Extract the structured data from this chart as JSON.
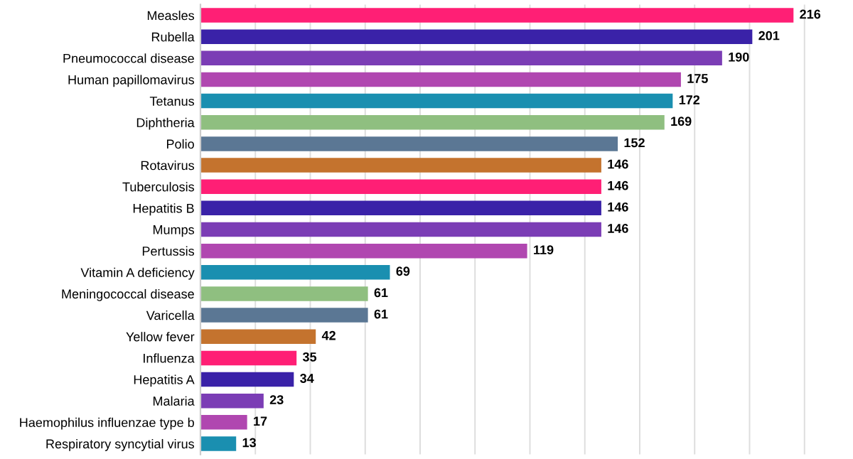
{
  "chart_data": {
    "type": "bar",
    "orientation": "horizontal",
    "categories": [
      "Measles",
      "Rubella",
      "Pneumococcal disease",
      "Human papillomavirus",
      "Tetanus",
      "Diphtheria",
      "Polio",
      "Rotavirus",
      "Tuberculosis",
      "Hepatitis B",
      "Mumps",
      "Pertussis",
      "Vitamin A deficiency",
      "Meningococcal disease",
      "Varicella",
      "Yellow fever",
      "Influenza",
      "Hepatitis A",
      "Malaria",
      "Haemophilus influenzae type b",
      "Respiratory syncytial virus"
    ],
    "values": [
      216,
      201,
      190,
      175,
      172,
      169,
      152,
      146,
      146,
      146,
      146,
      119,
      69,
      61,
      61,
      42,
      35,
      34,
      23,
      17,
      13
    ],
    "colors": [
      "#ff1f75",
      "#3a22a8",
      "#7b3db5",
      "#b047b0",
      "#1a8fb0",
      "#8fbf80",
      "#5b7794",
      "#c4732e",
      "#ff1f75",
      "#3a22a8",
      "#7b3db5",
      "#b047b0",
      "#1a8fb0",
      "#8fbf80",
      "#5b7794",
      "#c4732e",
      "#ff1f75",
      "#3a22a8",
      "#7b3db5",
      "#b047b0",
      "#1a8fb0"
    ],
    "xticks": [
      {
        "value": 0,
        "label": null
      },
      {
        "value": 20,
        "label": null
      },
      {
        "value": 40,
        "label": null
      },
      {
        "value": 60,
        "label": null
      },
      {
        "value": 80,
        "label": null
      },
      {
        "value": 100,
        "label": null
      },
      {
        "value": 120,
        "label": null
      },
      {
        "value": 140,
        "label": null
      },
      {
        "value": 160,
        "label": null
      },
      {
        "value": 180,
        "label": null
      },
      {
        "value": 200,
        "label": null
      },
      {
        "value": 220,
        "label": null
      }
    ],
    "grid": "x",
    "data_labels": true
  }
}
